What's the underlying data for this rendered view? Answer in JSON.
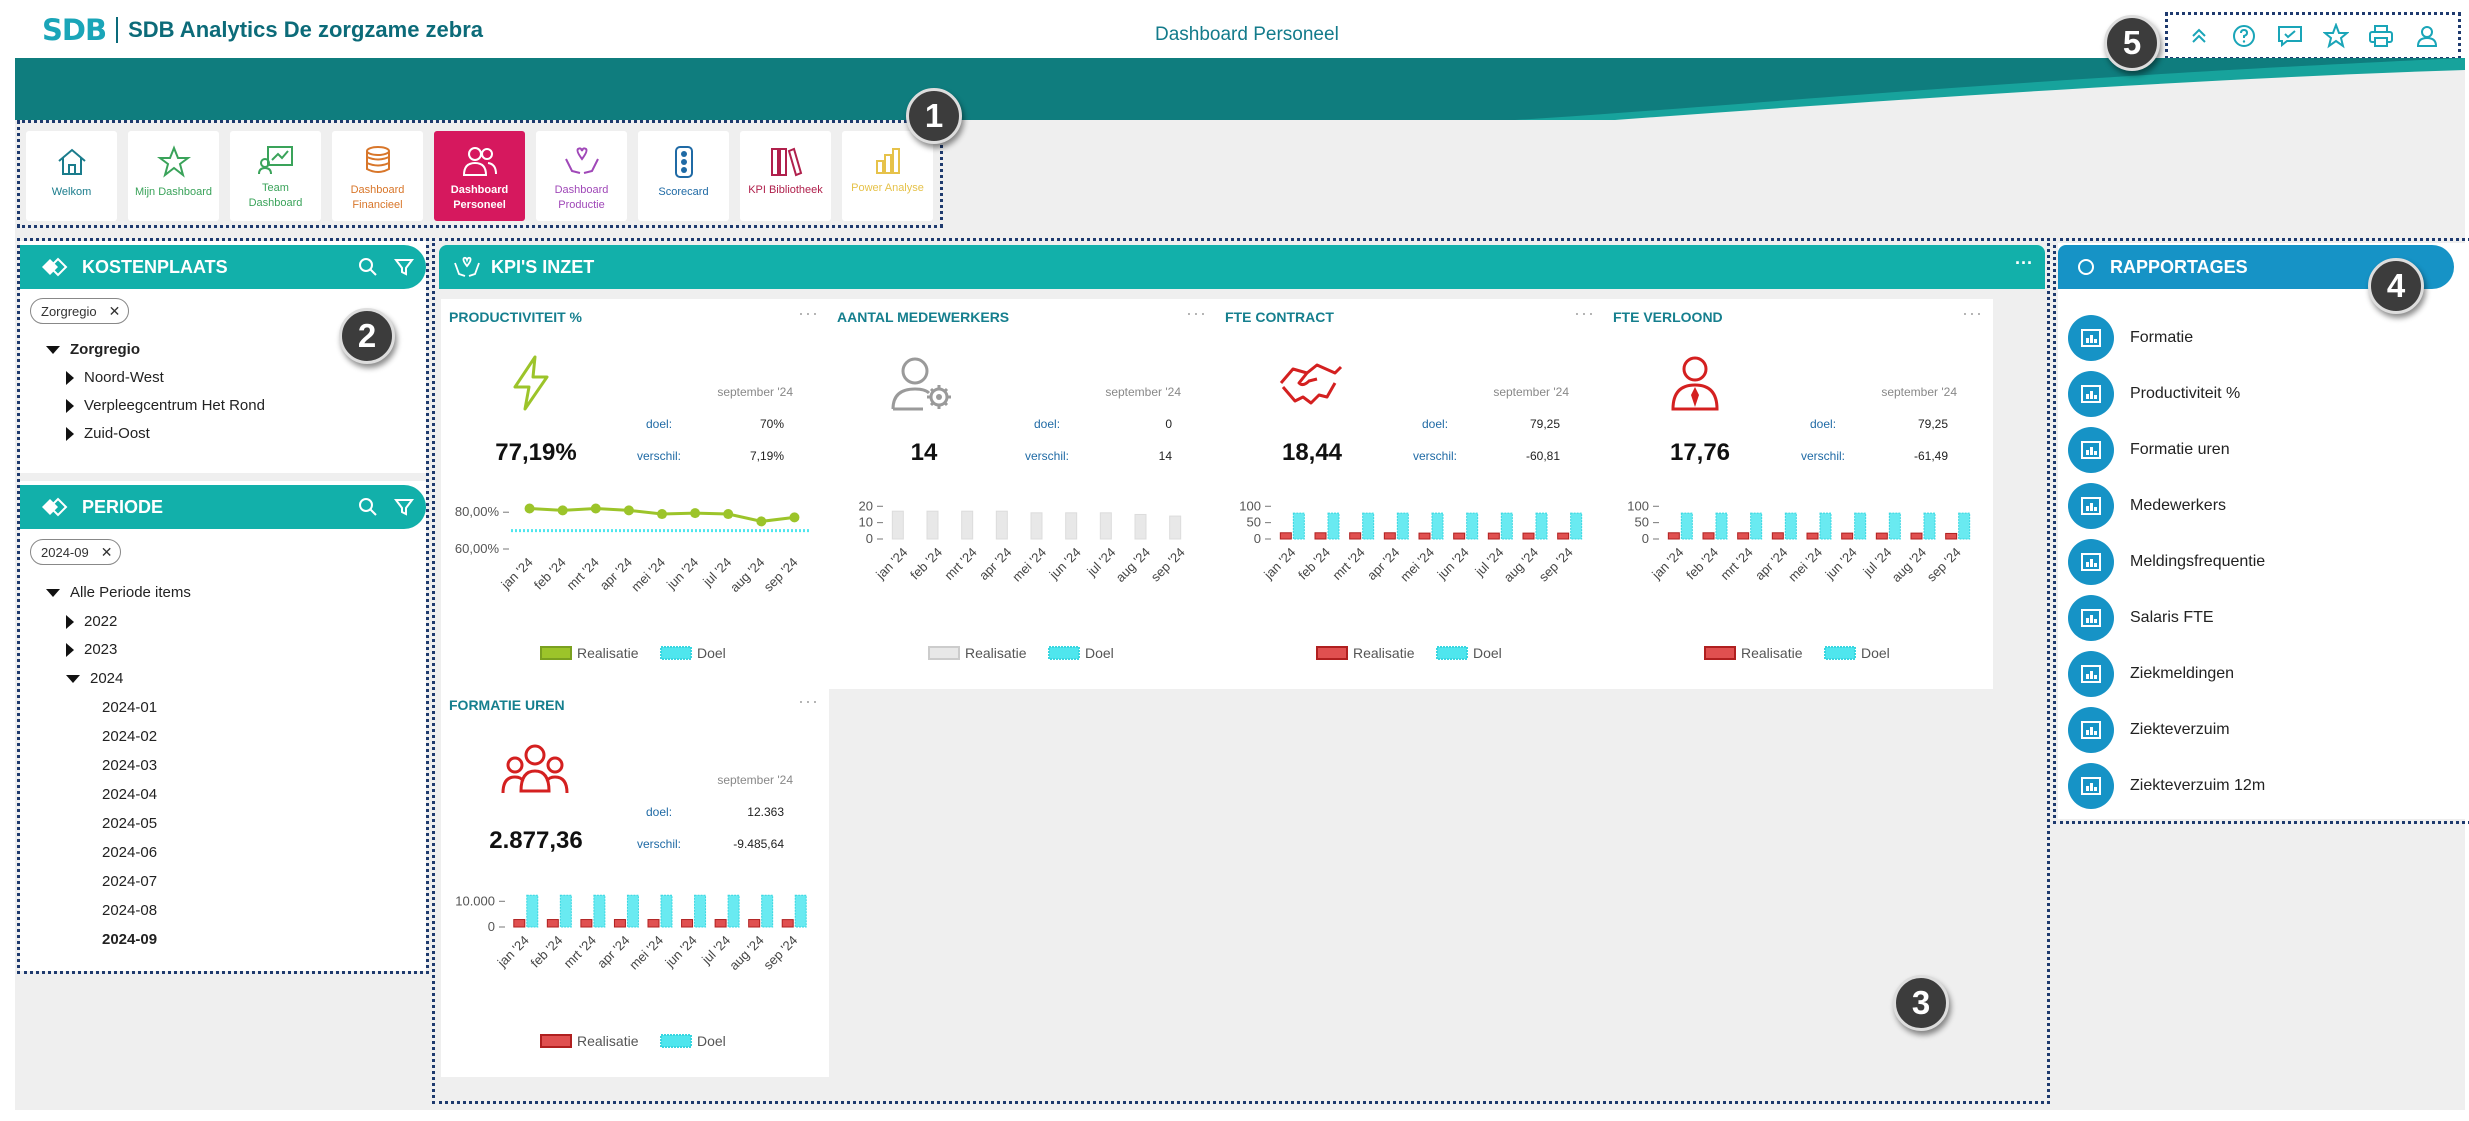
{
  "header": {
    "logo_mark": "SDB",
    "app_title": "SDB Analytics De zorgzame zebra",
    "page_title": "Dashboard Personeel",
    "icons": [
      "collapse-up-icon",
      "help-icon",
      "feedback-icon",
      "favorite-star-icon",
      "print-icon",
      "user-icon"
    ]
  },
  "callouts": [
    "1",
    "2",
    "3",
    "4",
    "5"
  ],
  "nav": {
    "tiles": [
      {
        "label": "Welkom",
        "color": "#1a7c8c",
        "icon": "home-icon"
      },
      {
        "label": "Mijn Dashboard",
        "color": "#3aa35a",
        "icon": "star-icon"
      },
      {
        "label": "Team\nDashboard",
        "color": "#3aa35a",
        "icon": "team-chart-icon"
      },
      {
        "label": "Dashboard\nFinancieel",
        "color": "#d8762a",
        "icon": "coins-icon"
      },
      {
        "label": "Dashboard\nPersoneel",
        "color": "#ffffff",
        "icon": "people-icon",
        "active": true
      },
      {
        "label": "Dashboard\nProductie",
        "color": "#a048b8",
        "icon": "care-hands-icon"
      },
      {
        "label": "Scorecard",
        "color": "#1f6aa5",
        "icon": "traffic-light-icon"
      },
      {
        "label": "KPI Bibliotheek",
        "color": "#b0204c",
        "icon": "books-icon"
      },
      {
        "label": "Power Analyse",
        "color": "#e6c24a",
        "icon": "bar-chart-icon"
      }
    ]
  },
  "kostenplaats": {
    "title": "KOSTENPLAATS",
    "chip": "Zorgregio",
    "tree": [
      {
        "label": "Zorgregio",
        "level": 0,
        "state": "open",
        "bold": true
      },
      {
        "label": "Noord-West",
        "level": 1,
        "state": "closed"
      },
      {
        "label": "Verpleegcentrum Het Rond",
        "level": 1,
        "state": "closed"
      },
      {
        "label": "Zuid-Oost",
        "level": 1,
        "state": "closed"
      }
    ]
  },
  "periode": {
    "title": "PERIODE",
    "chip": "2024-09",
    "tree": [
      {
        "label": "Alle Periode items",
        "level": 0,
        "state": "open"
      },
      {
        "label": "2022",
        "level": 1,
        "state": "closed"
      },
      {
        "label": "2023",
        "level": 1,
        "state": "closed"
      },
      {
        "label": "2024",
        "level": 1,
        "state": "open"
      },
      {
        "label": "2024-01",
        "level": 2
      },
      {
        "label": "2024-02",
        "level": 2
      },
      {
        "label": "2024-03",
        "level": 2
      },
      {
        "label": "2024-04",
        "level": 2
      },
      {
        "label": "2024-05",
        "level": 2
      },
      {
        "label": "2024-06",
        "level": 2
      },
      {
        "label": "2024-07",
        "level": 2
      },
      {
        "label": "2024-08",
        "level": 2
      },
      {
        "label": "2024-09",
        "level": 2,
        "bold": true
      }
    ]
  },
  "kpi_section": {
    "title": "KPI'S INZET",
    "more": "···",
    "labels": {
      "doel": "doel:",
      "verschil": "verschil:",
      "realisatie": "Realisatie",
      "doel_legend": "Doel"
    }
  },
  "kpis": [
    {
      "title": "PRODUCTIVITEIT %",
      "icon": "lightning-icon",
      "icon_color": "#9cc42a",
      "month": "september '24",
      "doel": "70%",
      "verschil": "7,19%",
      "big": "77,19%"
    },
    {
      "title": "AANTAL MEDEWERKERS",
      "icon": "user-gear-icon",
      "icon_color": "#9a9a9a",
      "month": "september '24",
      "doel": "0",
      "verschil": "14",
      "big": "14"
    },
    {
      "title": "FTE CONTRACT",
      "icon": "handshake-icon",
      "icon_color": "#d42020",
      "month": "september '24",
      "doel": "79,25",
      "verschil": "-60,81",
      "big": "18,44"
    },
    {
      "title": "FTE VERLOOND",
      "icon": "employee-icon",
      "icon_color": "#d42020",
      "month": "september '24",
      "doel": "79,25",
      "verschil": "-61,49",
      "big": "17,76"
    },
    {
      "title": "FORMATIE UREN",
      "icon": "group-icon",
      "icon_color": "#d42020",
      "month": "september '24",
      "doel": "12.363",
      "verschil": "-9.485,64",
      "big": "2.877,36"
    }
  ],
  "chart_data": [
    {
      "type": "line",
      "categories": [
        "jan '24",
        "feb '24",
        "mrt '24",
        "apr '24",
        "mei '24",
        "jun '24",
        "jul '24",
        "aug '24",
        "sep '24"
      ],
      "series": [
        {
          "name": "Realisatie",
          "values": [
            82,
            81,
            82,
            81,
            79,
            79.5,
            79,
            75,
            77.2
          ],
          "color": "#9cc42a"
        },
        {
          "name": "Doel",
          "values": [
            70,
            70,
            70,
            70,
            70,
            70,
            70,
            70,
            70
          ],
          "color": "#4fe6ee"
        }
      ],
      "ylim": [
        60,
        85
      ],
      "yticks": [
        "80,00%",
        "60,00%"
      ]
    },
    {
      "type": "bar",
      "categories": [
        "jan '24",
        "feb '24",
        "mrt '24",
        "apr '24",
        "mei '24",
        "jun '24",
        "jul '24",
        "aug '24",
        "sep '24"
      ],
      "series": [
        {
          "name": "Realisatie",
          "values": [
            17,
            17,
            17,
            17,
            16,
            16,
            16,
            15,
            14
          ],
          "color": "#e8e8e8"
        },
        {
          "name": "Doel",
          "values": [
            0,
            0,
            0,
            0,
            0,
            0,
            0,
            0,
            0
          ],
          "color": "#4fe6ee"
        }
      ],
      "ylim": [
        0,
        22
      ],
      "yticks": [
        "20",
        "10",
        "0"
      ]
    },
    {
      "type": "bar",
      "categories": [
        "jan '24",
        "feb '24",
        "mrt '24",
        "apr '24",
        "mei '24",
        "jun '24",
        "jul '24",
        "aug '24",
        "sep '24"
      ],
      "series": [
        {
          "name": "Realisatie",
          "values": [
            19,
            19,
            19,
            19,
            18,
            18,
            18,
            18,
            18
          ],
          "color": "#e05050"
        },
        {
          "name": "Doel",
          "values": [
            79,
            79,
            79,
            79,
            79,
            79,
            79,
            79,
            79
          ],
          "color": "#4fe6ee"
        }
      ],
      "ylim": [
        0,
        110
      ],
      "yticks": [
        "100",
        "50",
        "0"
      ]
    },
    {
      "type": "bar",
      "categories": [
        "jan '24",
        "feb '24",
        "mrt '24",
        "apr '24",
        "mei '24",
        "jun '24",
        "jul '24",
        "aug '24",
        "sep '24"
      ],
      "series": [
        {
          "name": "Realisatie",
          "values": [
            19,
            19,
            19,
            19,
            18,
            18,
            18,
            18,
            17
          ],
          "color": "#e05050"
        },
        {
          "name": "Doel",
          "values": [
            79,
            79,
            79,
            79,
            79,
            79,
            79,
            79,
            79
          ],
          "color": "#4fe6ee"
        }
      ],
      "ylim": [
        0,
        110
      ],
      "yticks": [
        "100",
        "50",
        "0"
      ]
    },
    {
      "type": "bar",
      "categories": [
        "jan '24",
        "feb '24",
        "mrt '24",
        "apr '24",
        "mei '24",
        "jun '24",
        "jul '24",
        "aug '24",
        "sep '24"
      ],
      "series": [
        {
          "name": "Realisatie",
          "values": [
            2900,
            2900,
            2900,
            2900,
            2900,
            2900,
            2900,
            2900,
            2877
          ],
          "color": "#e05050"
        },
        {
          "name": "Doel",
          "values": [
            12363,
            12363,
            12363,
            12363,
            12363,
            12363,
            12363,
            12363,
            12363
          ],
          "color": "#4fe6ee"
        }
      ],
      "ylim": [
        0,
        14000
      ],
      "yticks": [
        "10.000",
        "0"
      ]
    }
  ],
  "rapportages": {
    "title": "RAPPORTAGES",
    "items": [
      "Formatie",
      "Productiviteit %",
      "Formatie uren",
      "Medewerkers",
      "Meldingsfrequentie",
      "Salaris FTE",
      "Ziekmeldingen",
      "Ziekteverzuim",
      "Ziekteverzuim 12m"
    ]
  },
  "colors": {
    "teal": "#12b0aa",
    "blue": "#1693c6",
    "active": "#d6185e",
    "dotted": "#1e3a6e"
  }
}
